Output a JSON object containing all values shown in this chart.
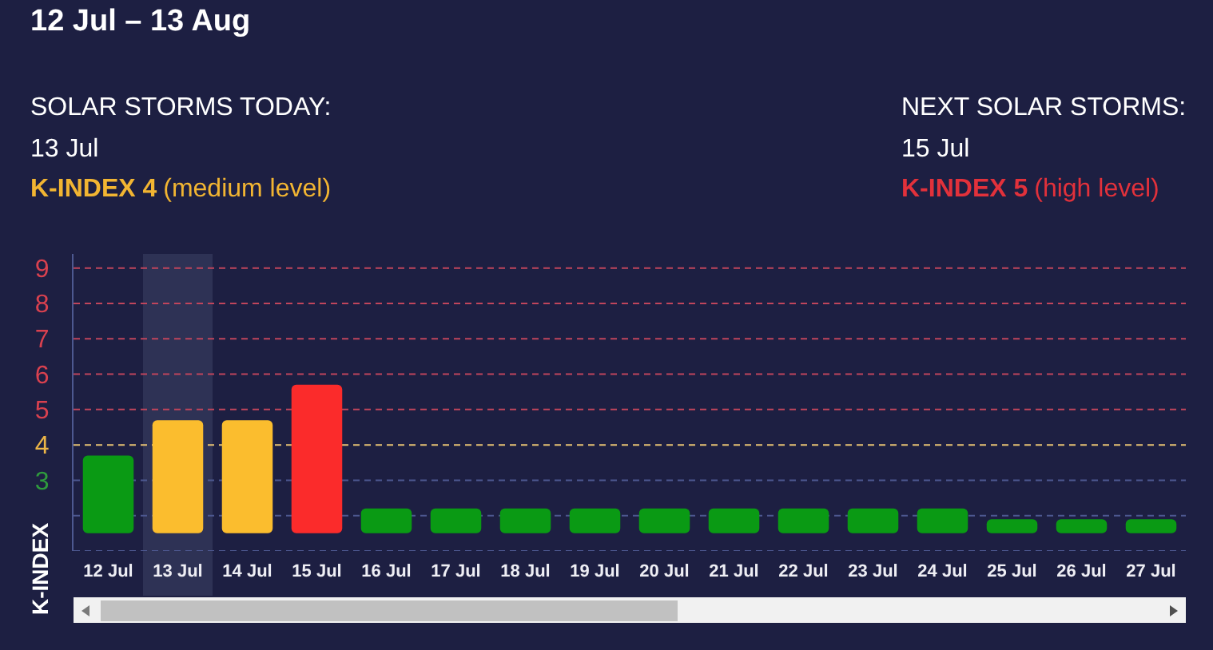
{
  "chart_data": {
    "type": "bar",
    "title": "12 Jul – 13 Aug",
    "ylabel": "K-INDEX",
    "annotations": [
      "SOLAR STORMS TODAY:",
      "13 Jul",
      "K-INDEX 4",
      "(medium level)",
      "NEXT SOLAR STORMS:",
      "15 Jul",
      "K-INDEX 5",
      "(high level)"
    ],
    "categories": [
      "12 Jul",
      "13 Jul",
      "14 Jul",
      "15 Jul",
      "16 Jul",
      "17 Jul",
      "18 Jul",
      "19 Jul",
      "20 Jul",
      "21 Jul",
      "22 Jul",
      "23 Jul",
      "24 Jul",
      "25 Jul",
      "26 Jul",
      "27 Jul"
    ],
    "values": [
      2.2,
      3.2,
      3.2,
      4.2,
      0.7,
      0.7,
      0.7,
      0.7,
      0.7,
      0.7,
      0.7,
      0.7,
      0.7,
      0.4,
      0.4,
      0.4
    ],
    "base": [
      1.5,
      1.5,
      1.5,
      1.5,
      1.5,
      1.5,
      1.5,
      1.5,
      1.5,
      1.5,
      1.5,
      1.5,
      1.5,
      1.5,
      1.5,
      1.5
    ],
    "colors": [
      "#0a9a14",
      "#fbbd2e",
      "#fbbd2e",
      "#fb2b2b",
      "#0a9a14",
      "#0a9a14",
      "#0a9a14",
      "#0a9a14",
      "#0a9a14",
      "#0a9a14",
      "#0a9a14",
      "#0a9a14",
      "#0a9a14",
      "#0a9a14",
      "#0a9a14",
      "#0a9a14"
    ],
    "ylim": [
      1,
      9.4
    ],
    "yticks": [
      3,
      4,
      5,
      6,
      7,
      8,
      9
    ],
    "ref_lines": [
      {
        "axis": "y",
        "value": 9,
        "color": "#c0455c",
        "line_style": "dashed"
      },
      {
        "axis": "y",
        "value": 8,
        "color": "#c0455c",
        "line_style": "dashed"
      },
      {
        "axis": "y",
        "value": 7,
        "color": "#c0455c",
        "line_style": "dashed"
      },
      {
        "axis": "y",
        "value": 6,
        "color": "#c0455c",
        "line_style": "dashed"
      },
      {
        "axis": "y",
        "value": 5,
        "color": "#c0455c",
        "line_style": "dashed"
      },
      {
        "axis": "y",
        "value": 4,
        "color": "#e6c273",
        "line_style": "dashed"
      },
      {
        "axis": "y",
        "value": 3,
        "color": "#4d5890",
        "line_style": "dashed"
      },
      {
        "axis": "y",
        "value": 2,
        "color": "#4d5890",
        "line_style": "dashed"
      },
      {
        "axis": "y",
        "value": 1,
        "color": "#4d5890",
        "line_style": "dashed"
      }
    ],
    "bands": [
      {
        "axis": "x",
        "from": "13 Jul",
        "to": "13 Jul",
        "color": "#2e3255"
      }
    ]
  }
}
